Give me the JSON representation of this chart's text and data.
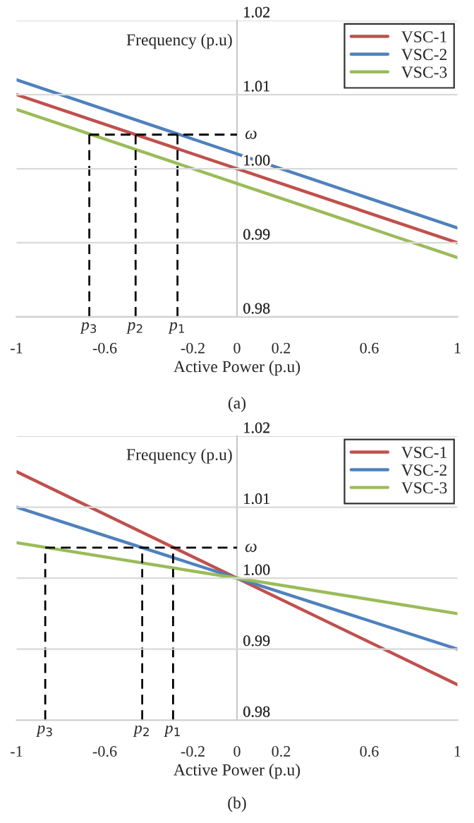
{
  "chart_data": [
    {
      "type": "line",
      "xlabel": "Active Power (p.u)",
      "ylabel": "Frequency (p.u)",
      "xlim": [
        -1,
        1
      ],
      "ylim": [
        0.98,
        1.02
      ],
      "xticks": [
        -1,
        -0.6,
        -0.2,
        0,
        0.2,
        0.6,
        1
      ],
      "yticks": [
        0.98,
        0.99,
        {
          "value": 1.0,
          "label": "1.00"
        },
        1.01,
        1.02
      ],
      "grid": "y",
      "legend": "top right",
      "series": [
        {
          "name": "VSC-1",
          "color": "#c0504d",
          "x": [
            -1,
            1
          ],
          "values": [
            1.01,
            0.99
          ]
        },
        {
          "name": "VSC-2",
          "color": "#4f81bd",
          "x": [
            -1,
            1
          ],
          "values": [
            1.012,
            0.992
          ]
        },
        {
          "name": "VSC-3",
          "color": "#9bbb59",
          "x": [
            -1,
            1
          ],
          "values": [
            1.008,
            0.988
          ]
        },
        {
          "name": "ω",
          "color": "#000000",
          "line_style": "dashed",
          "x": [
            -0.67,
            0
          ],
          "values": [
            1.0046,
            1.0046
          ]
        },
        {
          "color": "#000000",
          "line_style": "dashed",
          "x": [
            -0.27,
            -0.27
          ],
          "values": [
            0.98,
            1.0046
          ]
        },
        {
          "color": "#000000",
          "line_style": "dashed",
          "x": [
            -0.46,
            -0.46
          ],
          "values": [
            0.98,
            1.0046
          ]
        },
        {
          "color": "#000000",
          "line_style": "dashed",
          "x": [
            -0.67,
            -0.67
          ],
          "values": [
            0.98,
            1.0046
          ]
        }
      ],
      "annotations": [
        {
          "text": "p$_{1}$",
          "x": -0.27,
          "y": 0.98
        },
        {
          "text": "p$_{2}$",
          "x": -0.46,
          "y": 0.98
        },
        {
          "text": "p$_{3}$",
          "x": -0.67,
          "y": 0.98
        },
        "(a)"
      ]
    },
    {
      "type": "line",
      "xlabel": "Active Power (p.u)",
      "ylabel": "Frequency (p.u)",
      "xlim": [
        -1,
        1
      ],
      "ylim": [
        0.98,
        1.02
      ],
      "xticks": [
        -1,
        -0.6,
        -0.2,
        0,
        0.2,
        0.6,
        1
      ],
      "yticks": [
        0.98,
        0.99,
        {
          "value": 1.0,
          "label": "1.00"
        },
        1.01,
        1.02
      ],
      "grid": "y",
      "legend": "top right",
      "series": [
        {
          "name": "VSC-1",
          "color": "#c0504d",
          "x": [
            -1,
            1
          ],
          "values": [
            1.015,
            0.985
          ]
        },
        {
          "name": "VSC-2",
          "color": "#4f81bd",
          "x": [
            -1,
            1
          ],
          "values": [
            1.01,
            0.99
          ]
        },
        {
          "name": "VSC-3",
          "color": "#9bbb59",
          "x": [
            -1,
            1
          ],
          "values": [
            1.005,
            0.995
          ]
        },
        {
          "name": "ω",
          "color": "#000000",
          "line_style": "dashed",
          "x": [
            -0.87,
            0
          ],
          "values": [
            1.0043,
            1.0043
          ]
        },
        {
          "color": "#000000",
          "line_style": "dashed",
          "x": [
            -0.29,
            -0.29
          ],
          "values": [
            0.98,
            1.0043
          ]
        },
        {
          "color": "#000000",
          "line_style": "dashed",
          "x": [
            -0.43,
            -0.43
          ],
          "values": [
            0.98,
            1.0043
          ]
        },
        {
          "color": "#000000",
          "line_style": "dashed",
          "x": [
            -0.87,
            -0.87
          ],
          "values": [
            0.98,
            1.0043
          ]
        }
      ],
      "annotations": [
        {
          "text": "p$_{1}$",
          "x": -0.29,
          "y": 0.98
        },
        {
          "text": "p$_{2}$",
          "x": -0.43,
          "y": 0.98
        },
        {
          "text": "p$_{3}$",
          "x": -0.87,
          "y": 0.98
        },
        "(b)"
      ]
    }
  ]
}
